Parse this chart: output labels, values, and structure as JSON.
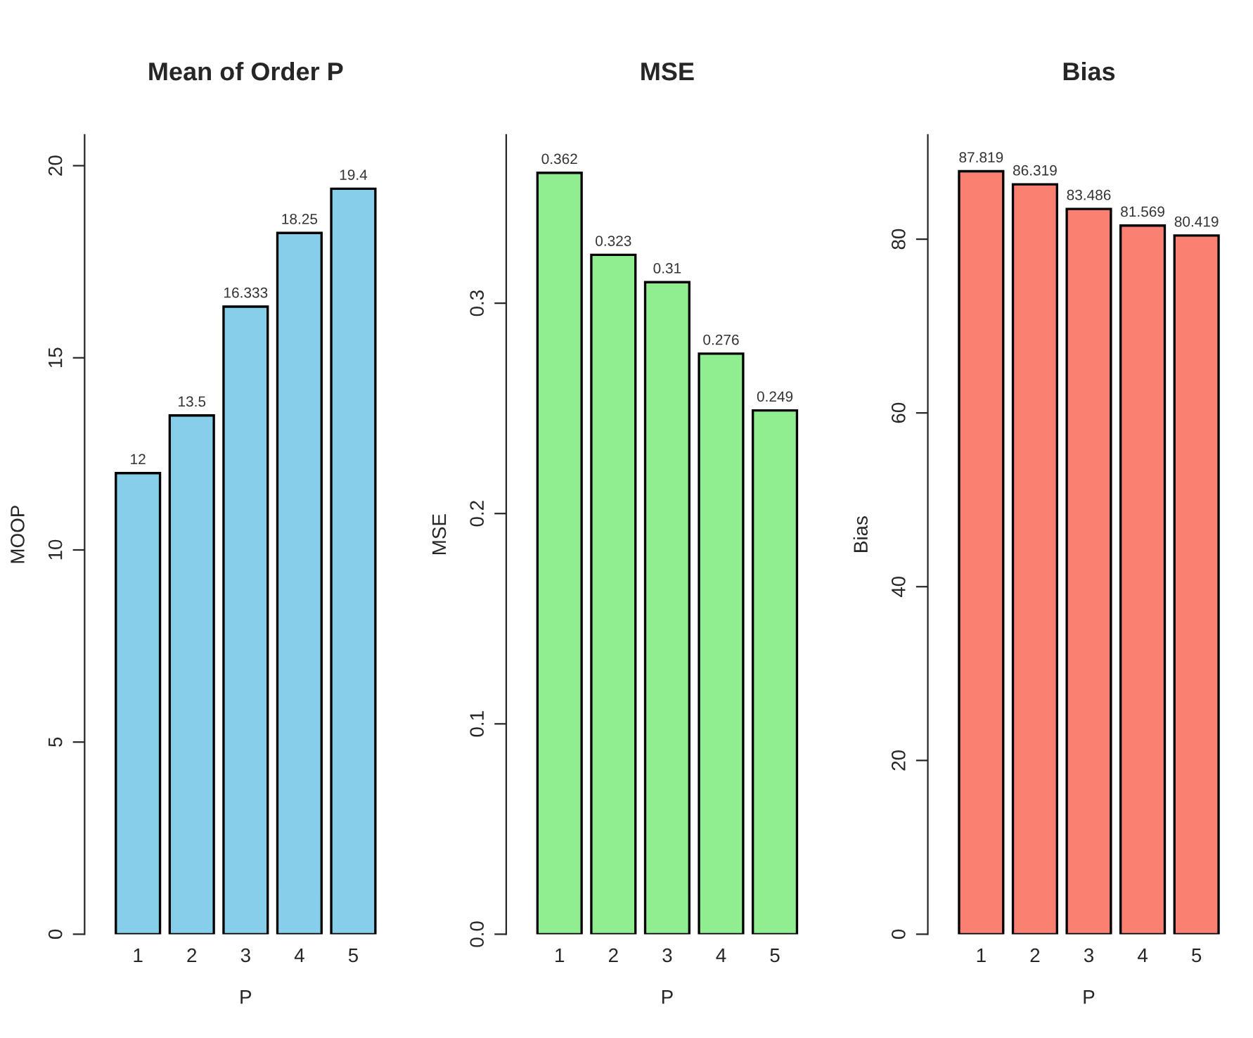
{
  "chart_data": [
    {
      "type": "bar",
      "title": "Mean of Order P",
      "xlabel": "P",
      "ylabel": "MOOP",
      "categories": [
        "1",
        "2",
        "3",
        "4",
        "5"
      ],
      "values": [
        12,
        13.5,
        16.333,
        18.25,
        19.4
      ],
      "color": "#87ceeb",
      "ylim": [
        0,
        20.8
      ],
      "yticks": [
        0,
        5,
        10,
        15,
        20
      ],
      "data_labels": true
    },
    {
      "type": "bar",
      "title": "MSE",
      "xlabel": "P",
      "ylabel": "MSE",
      "categories": [
        "1",
        "2",
        "3",
        "4",
        "5"
      ],
      "values": [
        0.362,
        0.323,
        0.31,
        0.276,
        0.249
      ],
      "color": "#90ee90",
      "ylim": [
        0,
        0.38
      ],
      "yticks": [
        {
          "value": 0,
          "label": "0.0"
        },
        0.1,
        0.2,
        0.3
      ],
      "data_labels": true
    },
    {
      "type": "bar",
      "title": "Bias",
      "xlabel": "P",
      "ylabel": "Bias",
      "categories": [
        "1",
        "2",
        "3",
        "4",
        "5"
      ],
      "values": [
        87.819,
        86.319,
        83.486,
        81.569,
        80.419
      ],
      "color": "#fa8072",
      "ylim": [
        0,
        92
      ],
      "yticks": [
        0,
        20,
        40,
        60,
        80
      ],
      "data_labels": true
    }
  ]
}
